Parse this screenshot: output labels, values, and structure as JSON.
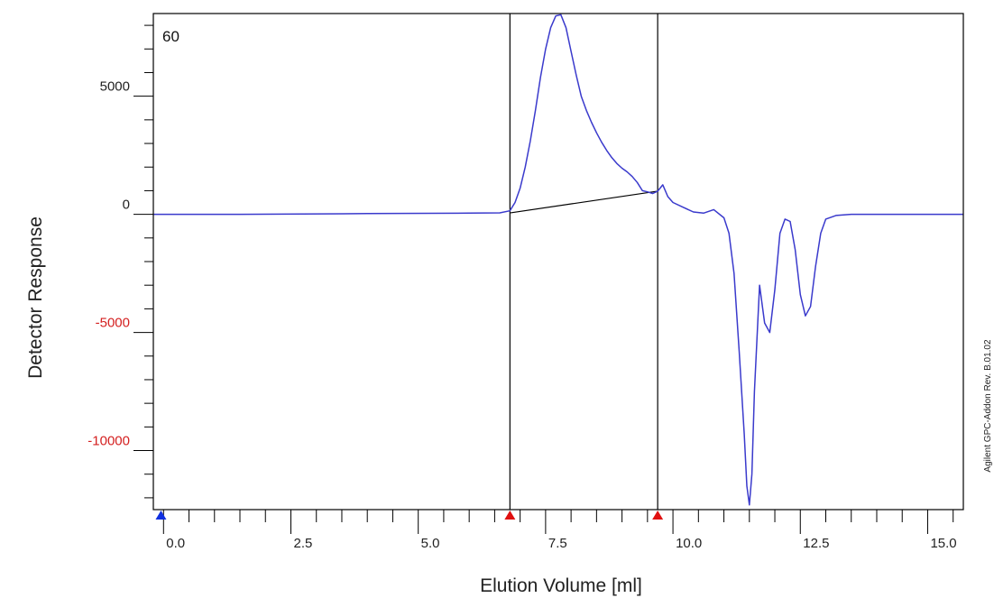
{
  "chart_data": {
    "type": "line",
    "title": "",
    "corner_label": "60",
    "xlabel": "Elution Volume [ml]",
    "ylabel": "Detector Response",
    "side_note": "Agilent GPC-Addon Rev. B.01.02",
    "xlim": [
      -0.2,
      15.7
    ],
    "ylim": [
      -12500,
      8500
    ],
    "x_ticks": [
      0.0,
      2.5,
      5.0,
      7.5,
      10.0,
      12.5,
      15.0
    ],
    "x_tick_labels": [
      "0.0",
      "2.5",
      "5.0",
      "7.5",
      "10.0",
      "12.5",
      "15.0"
    ],
    "x_minor_step": 0.5,
    "y_ticks": [
      5000,
      0,
      -5000,
      -10000
    ],
    "y_tick_labels": [
      "5000",
      "0",
      "-5000",
      "-10000"
    ],
    "y_minor_step": 1000,
    "colors": {
      "trace": "#3a3acc",
      "positive_label": "#222222",
      "negative_label": "#d42020",
      "marker_blue": "#1030e0",
      "marker_red": "#e01010",
      "frame": "#000000"
    },
    "integration_limits": [
      6.8,
      9.7
    ],
    "baseline": {
      "x": [
        6.8,
        9.7
      ],
      "y": [
        60,
        980
      ]
    },
    "markers": [
      {
        "x": -0.05,
        "color": "blue"
      },
      {
        "x": 6.8,
        "color": "red"
      },
      {
        "x": 9.7,
        "color": "red"
      }
    ],
    "series": [
      {
        "x": [
          -0.2,
          1.5,
          4.0,
          6.0,
          6.6,
          6.8,
          6.9,
          7.0,
          7.1,
          7.2,
          7.3,
          7.4,
          7.5,
          7.6,
          7.7,
          7.8,
          7.9,
          8.0,
          8.1,
          8.2,
          8.3,
          8.4,
          8.5,
          8.6,
          8.7,
          8.8,
          8.9,
          9.0,
          9.1,
          9.2,
          9.3,
          9.4,
          9.5,
          9.6,
          9.7,
          9.8,
          9.9,
          10.0,
          10.2,
          10.4,
          10.6,
          10.8,
          11.0,
          11.1,
          11.2,
          11.3,
          11.4,
          11.45,
          11.5,
          11.55,
          11.6,
          11.7,
          11.8,
          11.9,
          12.0,
          12.1,
          12.2,
          12.3,
          12.4,
          12.5,
          12.6,
          12.7,
          12.8,
          12.9,
          13.0,
          13.2,
          13.5,
          14.0,
          15.0,
          15.7
        ],
        "y": [
          0,
          0,
          30,
          50,
          60,
          150,
          500,
          1100,
          2000,
          3100,
          4400,
          5800,
          7000,
          7900,
          8400,
          8450,
          7900,
          6900,
          5900,
          5000,
          4400,
          3900,
          3450,
          3050,
          2700,
          2400,
          2150,
          1950,
          1800,
          1600,
          1350,
          1000,
          950,
          880,
          980,
          1250,
          750,
          500,
          300,
          100,
          50,
          200,
          -150,
          -800,
          -2500,
          -5800,
          -9300,
          -11500,
          -12300,
          -11000,
          -7500,
          -3000,
          -4600,
          -5000,
          -3200,
          -800,
          -200,
          -300,
          -1500,
          -3400,
          -4300,
          -3900,
          -2200,
          -800,
          -200,
          -50,
          0,
          0,
          0,
          0
        ]
      }
    ]
  }
}
